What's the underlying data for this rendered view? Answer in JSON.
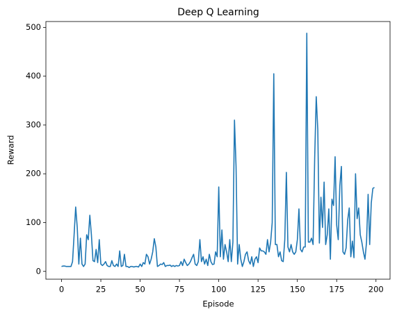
{
  "chart_data": {
    "type": "line",
    "title": "Deep Q Learning",
    "x_label": "Episode",
    "y_label": "Reward",
    "x": [
      0,
      1,
      2,
      3,
      4,
      5,
      6,
      7,
      8,
      9,
      10,
      11,
      12,
      13,
      14,
      15,
      16,
      17,
      18,
      19,
      20,
      21,
      22,
      23,
      24,
      25,
      26,
      27,
      28,
      29,
      30,
      31,
      32,
      33,
      34,
      35,
      36,
      37,
      38,
      39,
      40,
      41,
      42,
      43,
      44,
      45,
      46,
      47,
      48,
      49,
      50,
      51,
      52,
      53,
      54,
      55,
      56,
      57,
      58,
      59,
      60,
      61,
      62,
      63,
      64,
      65,
      66,
      67,
      68,
      69,
      70,
      71,
      72,
      73,
      74,
      75,
      76,
      77,
      78,
      79,
      80,
      81,
      82,
      83,
      84,
      85,
      86,
      87,
      88,
      89,
      90,
      91,
      92,
      93,
      94,
      95,
      96,
      97,
      98,
      99,
      100,
      101,
      102,
      103,
      104,
      105,
      106,
      107,
      108,
      109,
      110,
      111,
      112,
      113,
      114,
      115,
      116,
      117,
      118,
      119,
      120,
      121,
      122,
      123,
      124,
      125,
      126,
      127,
      128,
      129,
      130,
      131,
      132,
      133,
      134,
      135,
      136,
      137,
      138,
      139,
      140,
      141,
      142,
      143,
      144,
      145,
      146,
      147,
      148,
      149,
      150,
      151,
      152,
      153,
      154,
      155,
      156,
      157,
      158,
      159,
      160,
      161,
      162,
      163,
      164,
      165,
      166,
      167,
      168,
      169,
      170,
      171,
      172,
      173,
      174,
      175,
      176,
      177,
      178,
      179,
      180,
      181,
      182,
      183,
      184,
      185,
      186,
      187,
      188,
      189,
      190,
      191,
      192,
      193,
      194,
      195,
      196,
      197,
      198,
      199
    ],
    "series": [
      {
        "name": "Reward",
        "color": "#1f77b4",
        "values": [
          10,
          11,
          11,
          10,
          10,
          10,
          10,
          20,
          75,
          132,
          90,
          15,
          68,
          15,
          10,
          15,
          75,
          65,
          115,
          75,
          22,
          20,
          45,
          18,
          65,
          15,
          12,
          15,
          20,
          12,
          10,
          10,
          22,
          12,
          10,
          15,
          10,
          42,
          10,
          12,
          35,
          10,
          10,
          8,
          10,
          10,
          9,
          10,
          10,
          9,
          15,
          10,
          18,
          15,
          35,
          30,
          15,
          25,
          40,
          67,
          50,
          10,
          12,
          15,
          14,
          18,
          10,
          12,
          12,
          13,
          10,
          12,
          10,
          12,
          11,
          12,
          20,
          12,
          25,
          18,
          12,
          15,
          20,
          28,
          35,
          15,
          12,
          20,
          65,
          20,
          30,
          15,
          25,
          12,
          35,
          20,
          14,
          15,
          40,
          30,
          173,
          30,
          85,
          25,
          55,
          40,
          20,
          65,
          20,
          60,
          310,
          215,
          15,
          55,
          25,
          10,
          20,
          35,
          40,
          22,
          15,
          30,
          10,
          25,
          30,
          18,
          48,
          42,
          42,
          40,
          35,
          65,
          40,
          60,
          100,
          405,
          55,
          55,
          30,
          40,
          22,
          20,
          65,
          203,
          50,
          40,
          55,
          40,
          35,
          40,
          65,
          128,
          45,
          40,
          50,
          50,
          488,
          60,
          60,
          68,
          55,
          230,
          358,
          290,
          58,
          152,
          90,
          183,
          55,
          75,
          128,
          25,
          148,
          135,
          235,
          95,
          65,
          175,
          215,
          40,
          35,
          48,
          105,
          130,
          30,
          62,
          28,
          200,
          108,
          130,
          75,
          60,
          40,
          25,
          60,
          158,
          55,
          140,
          170,
          172
        ]
      }
    ],
    "xlim": [
      -9.95,
      208.95
    ],
    "ylim": [
      -16,
      512
    ],
    "xticks": [
      0,
      25,
      50,
      75,
      100,
      125,
      150,
      175,
      200
    ],
    "yticks": [
      0,
      100,
      200,
      300,
      400,
      500
    ]
  }
}
